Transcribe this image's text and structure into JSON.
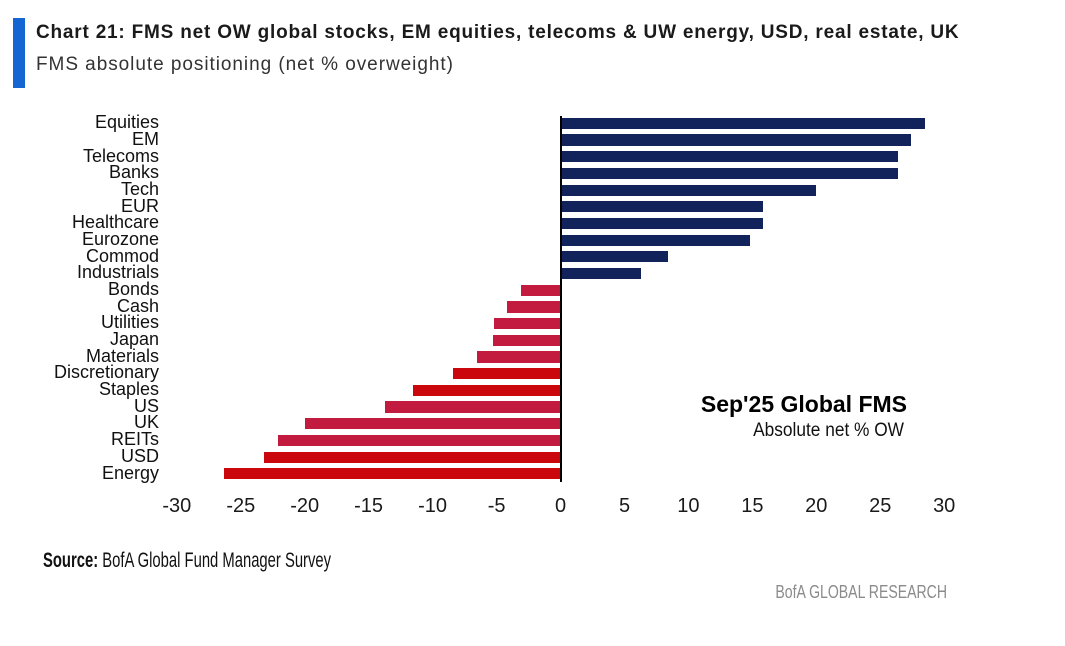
{
  "header": {
    "title": "Chart 21: FMS net OW global stocks, EM equities, telecoms & UW energy, USD, real estate, UK",
    "subtitle": "FMS absolute positioning (net % overweight)",
    "accent_color": "#1565d2"
  },
  "chart_data": {
    "type": "bar",
    "orientation": "horizontal",
    "title": "FMS absolute positioning (net % overweight)",
    "xlabel": "",
    "ylabel": "",
    "xlim": [
      -30,
      30
    ],
    "x_ticks": [
      -30,
      -25,
      -20,
      -15,
      -10,
      -5,
      0,
      5,
      10,
      15,
      20,
      25,
      30
    ],
    "grid": false,
    "legend": false,
    "palette": {
      "navy": "#11235a",
      "crimson": "#c31a40",
      "red": "#cb070e"
    },
    "bars": [
      {
        "label": "Equities",
        "value": 28.5,
        "color": "navy"
      },
      {
        "label": "EM",
        "value": 27.4,
        "color": "navy"
      },
      {
        "label": "Telecoms",
        "value": 26.4,
        "color": "navy"
      },
      {
        "label": "Banks",
        "value": 26.4,
        "color": "navy"
      },
      {
        "label": "Tech",
        "value": 20.0,
        "color": "navy"
      },
      {
        "label": "EUR",
        "value": 15.8,
        "color": "navy"
      },
      {
        "label": "Healthcare",
        "value": 15.8,
        "color": "navy"
      },
      {
        "label": "Eurozone",
        "value": 14.8,
        "color": "navy"
      },
      {
        "label": "Commod",
        "value": 8.4,
        "color": "navy"
      },
      {
        "label": "Industrials",
        "value": 6.3,
        "color": "navy"
      },
      {
        "label": "Bonds",
        "value": -3.1,
        "color": "crimson"
      },
      {
        "label": "Cash",
        "value": -4.2,
        "color": "crimson"
      },
      {
        "label": "Utilities",
        "value": -5.2,
        "color": "crimson"
      },
      {
        "label": "Japan",
        "value": -5.3,
        "color": "crimson"
      },
      {
        "label": "Materials",
        "value": -6.5,
        "color": "crimson"
      },
      {
        "label": "Discretionary",
        "value": -8.4,
        "color": "red"
      },
      {
        "label": "Staples",
        "value": -11.5,
        "color": "red"
      },
      {
        "label": "US",
        "value": -13.7,
        "color": "crimson"
      },
      {
        "label": "UK",
        "value": -20.0,
        "color": "crimson"
      },
      {
        "label": "REITs",
        "value": -22.1,
        "color": "crimson"
      },
      {
        "label": "USD",
        "value": -23.2,
        "color": "red"
      },
      {
        "label": "Energy",
        "value": -26.3,
        "color": "red"
      }
    ],
    "annotation": {
      "title": "Sep'25 Global FMS",
      "subtitle": "Absolute net % OW"
    }
  },
  "footer": {
    "source_label": "Source:",
    "source_text": " BofA Global Fund Manager Survey",
    "brand": "BofA GLOBAL RESEARCH"
  }
}
